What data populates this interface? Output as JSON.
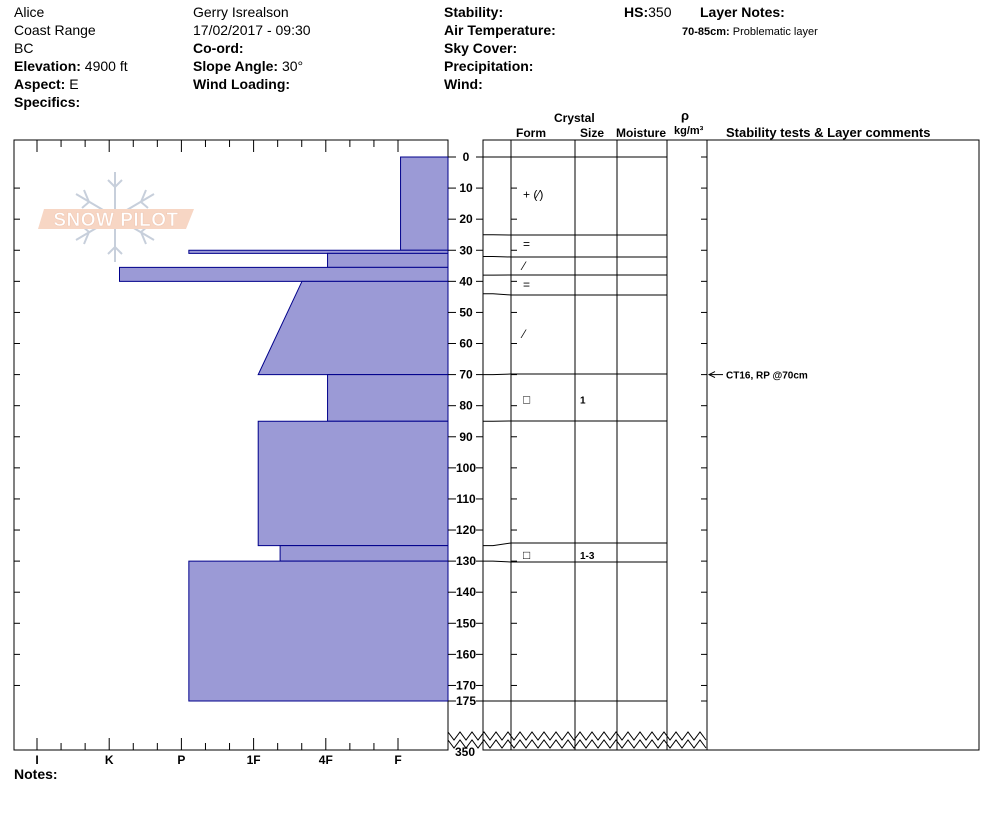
{
  "header": {
    "observer": "Alice",
    "range": "Coast Range",
    "province": "BC",
    "elevation_label": "Elevation:",
    "elevation_value": "4900 ft",
    "aspect_label": "Aspect:",
    "aspect_value": "E",
    "specifics_label": "Specifics:",
    "author": "Gerry Isrealson",
    "datetime": "17/02/2017 - 09:30",
    "coord_label": "Co-ord:",
    "slope_label": "Slope Angle:",
    "slope_value": "30°",
    "wind_loading_label": "Wind Loading:",
    "stability_label": "Stability:",
    "air_temp_label": "Air Temperature:",
    "sky_cover_label": "Sky Cover:",
    "precip_label": "Precipitation:",
    "wind_label": "Wind:",
    "hs_label": "HS:",
    "hs_value": "350",
    "layer_notes_label": "Layer Notes:",
    "layer_note_range": "70-85cm:",
    "layer_note_text": "Problematic layer"
  },
  "columns": {
    "crystal": "Crystal",
    "form": "Form",
    "size": "Size",
    "moisture": "Moisture",
    "rho": "ρ",
    "density_unit": "kg/m³",
    "stability": "Stability tests & Layer comments"
  },
  "notes_label": "Notes:",
  "logo_text": "SNOW PILOT",
  "colors": {
    "hardness_fill": "#9b9ad6",
    "stroke": "#000000"
  },
  "chart_data": {
    "type": "snow-profile",
    "hardness_scale": [
      "I",
      "K",
      "P",
      "1F",
      "4F",
      "F"
    ],
    "depth_ticks": [
      0,
      10,
      20,
      30,
      40,
      50,
      60,
      70,
      80,
      90,
      100,
      110,
      120,
      130,
      140,
      150,
      160,
      170,
      175
    ],
    "depth_bottom_label": "350",
    "hardness_profile": [
      {
        "from": 0,
        "to": 30,
        "hardness": 0.65
      },
      {
        "from": 30,
        "to": 31,
        "hardness": 3.55
      },
      {
        "from": 31,
        "to": 35.5,
        "hardness": 1.65
      },
      {
        "from": 35.5,
        "to": 40,
        "hardness": 4.5
      },
      {
        "from": 40,
        "to": 70,
        "hardness_top": 2.0,
        "hardness_bottom": 2.6
      },
      {
        "from": 70,
        "to": 85,
        "hardness": 1.65
      },
      {
        "from": 85,
        "to": 125,
        "hardness": 2.6
      },
      {
        "from": 125,
        "to": 130,
        "hardness": 2.3
      },
      {
        "from": 130,
        "to": 175,
        "hardness": 3.55
      }
    ],
    "layer_lines": [
      {
        "depth": 0,
        "y": 157
      },
      {
        "depth": 25,
        "y": 235
      },
      {
        "depth": 32,
        "y": 257
      },
      {
        "depth": 38,
        "y": 275
      },
      {
        "depth": 44,
        "y": 295
      },
      {
        "depth": 70,
        "y": 374
      },
      {
        "depth": 85,
        "y": 421
      },
      {
        "depth": 125,
        "y": 543
      },
      {
        "depth": 130,
        "y": 562
      },
      {
        "depth": 175,
        "y": 701
      }
    ],
    "grain_forms": [
      {
        "depth": 12,
        "symbol": "+ (⁄)"
      },
      {
        "depth": 28,
        "symbol": "="
      },
      {
        "depth": 35,
        "symbol": "⁄"
      },
      {
        "depth": 41,
        "symbol": "="
      },
      {
        "depth": 57,
        "symbol": "⁄"
      },
      {
        "depth": 78,
        "symbol": "□",
        "size": "1"
      },
      {
        "depth": 128,
        "symbol": "□",
        "size": "1-3"
      }
    ],
    "stability_tests": [
      {
        "depth": 70,
        "text": "CT16, RP @70cm"
      }
    ]
  }
}
